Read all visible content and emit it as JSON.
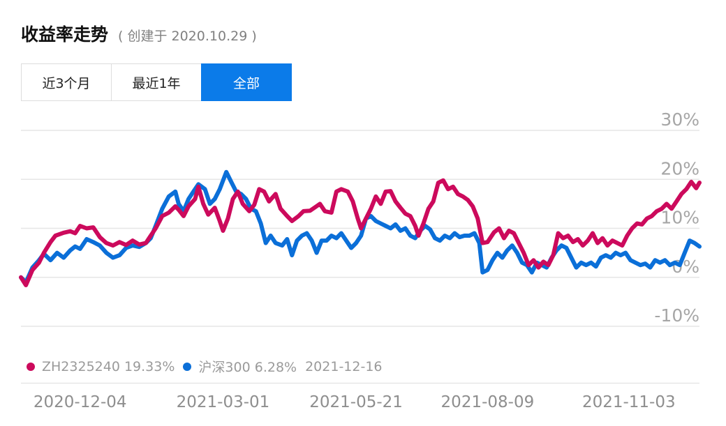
{
  "header": {
    "title": "收益率走势",
    "subtitle": "( 创建于 2020.10.29 )"
  },
  "tabs": [
    {
      "label": "近3个月",
      "active": false
    },
    {
      "label": "最近1年",
      "active": false
    },
    {
      "label": "全部",
      "active": true
    }
  ],
  "legend": {
    "items": [
      {
        "label": "ZH2325240 19.33%",
        "color": "#cc0a5c"
      },
      {
        "label": "沪深300 6.28%",
        "color": "#0b6fd8"
      }
    ],
    "date": "2021-12-16"
  },
  "chart_data": {
    "type": "line",
    "x_range": [
      "2020-10-29",
      "2021-12-16"
    ],
    "x_tick_labels": [
      "2020-12-04",
      "2021-03-01",
      "2021-05-21",
      "2021-08-09",
      "2021-11-03"
    ],
    "y_tick_labels": [
      "30%",
      "20%",
      "10%",
      "0%",
      "-10%"
    ],
    "y_ticks": [
      30,
      20,
      10,
      0,
      -10
    ],
    "ylim": [
      -10,
      30
    ],
    "grid": true,
    "series": [
      {
        "name": "ZH2325240",
        "color": "#cc0a5c",
        "points": [
          [
            "2020-10-29",
            0
          ],
          [
            "2020-11-01",
            -1.6
          ],
          [
            "2020-11-05",
            1.5
          ],
          [
            "2020-11-09",
            3.0
          ],
          [
            "2020-11-12",
            5.0
          ],
          [
            "2020-11-16",
            7.2
          ],
          [
            "2020-11-19",
            8.5
          ],
          [
            "2020-11-24",
            9.1
          ],
          [
            "2020-11-28",
            9.4
          ],
          [
            "2020-12-01",
            9.0
          ],
          [
            "2020-12-04",
            10.5
          ],
          [
            "2020-12-08",
            10.0
          ],
          [
            "2020-12-12",
            10.2
          ],
          [
            "2020-12-16",
            8.2
          ],
          [
            "2020-12-20",
            7.0
          ],
          [
            "2020-12-24",
            6.5
          ],
          [
            "2020-12-28",
            7.2
          ],
          [
            "2021-01-01",
            6.6
          ],
          [
            "2021-01-05",
            7.5
          ],
          [
            "2021-01-09",
            6.7
          ],
          [
            "2021-01-13",
            7.0
          ],
          [
            "2021-01-16",
            8.5
          ],
          [
            "2021-01-19",
            10.0
          ],
          [
            "2021-01-23",
            12.5
          ],
          [
            "2021-01-27",
            13.2
          ],
          [
            "2021-01-31",
            14.5
          ],
          [
            "2021-02-02",
            13.8
          ],
          [
            "2021-02-05",
            12.5
          ],
          [
            "2021-02-08",
            14.5
          ],
          [
            "2021-02-12",
            16.0
          ],
          [
            "2021-02-14",
            18.5
          ],
          [
            "2021-02-17",
            15.0
          ],
          [
            "2021-02-20",
            12.8
          ],
          [
            "2021-02-24",
            14.2
          ],
          [
            "2021-02-27",
            11.5
          ],
          [
            "2021-03-01",
            9.5
          ],
          [
            "2021-03-04",
            12.0
          ],
          [
            "2021-03-07",
            16.0
          ],
          [
            "2021-03-10",
            17.5
          ],
          [
            "2021-03-13",
            15.0
          ],
          [
            "2021-03-17",
            13.5
          ],
          [
            "2021-03-20",
            14.8
          ],
          [
            "2021-03-23",
            18.0
          ],
          [
            "2021-03-26",
            17.5
          ],
          [
            "2021-03-29",
            15.5
          ],
          [
            "2021-04-02",
            17.0
          ],
          [
            "2021-04-05",
            14.0
          ],
          [
            "2021-04-09",
            12.5
          ],
          [
            "2021-04-12",
            11.5
          ],
          [
            "2021-04-16",
            12.5
          ],
          [
            "2021-04-19",
            13.5
          ],
          [
            "2021-04-23",
            13.6
          ],
          [
            "2021-04-26",
            14.3
          ],
          [
            "2021-04-29",
            15.0
          ],
          [
            "2021-05-02",
            13.5
          ],
          [
            "2021-05-06",
            13.2
          ],
          [
            "2021-05-09",
            17.5
          ],
          [
            "2021-05-12",
            18.0
          ],
          [
            "2021-05-16",
            17.5
          ],
          [
            "2021-05-19",
            15.5
          ],
          [
            "2021-05-22",
            12.0
          ],
          [
            "2021-05-24",
            10.0
          ],
          [
            "2021-05-27",
            12.0
          ],
          [
            "2021-05-30",
            14.0
          ],
          [
            "2021-06-02",
            16.5
          ],
          [
            "2021-06-05",
            15.0
          ],
          [
            "2021-06-08",
            17.5
          ],
          [
            "2021-06-11",
            17.6
          ],
          [
            "2021-06-14",
            15.5
          ],
          [
            "2021-06-17",
            14.2
          ],
          [
            "2021-06-20",
            13.0
          ],
          [
            "2021-06-23",
            12.5
          ],
          [
            "2021-06-26",
            10.5
          ],
          [
            "2021-06-28",
            8.5
          ],
          [
            "2021-07-01",
            11.0
          ],
          [
            "2021-07-04",
            14.0
          ],
          [
            "2021-07-07",
            15.5
          ],
          [
            "2021-07-10",
            19.3
          ],
          [
            "2021-07-13",
            19.8
          ],
          [
            "2021-07-16",
            18.0
          ],
          [
            "2021-07-19",
            18.5
          ],
          [
            "2021-07-22",
            17.0
          ],
          [
            "2021-07-25",
            16.5
          ],
          [
            "2021-07-28",
            15.8
          ],
          [
            "2021-07-31",
            14.5
          ],
          [
            "2021-08-03",
            12.0
          ],
          [
            "2021-08-06",
            7.0
          ],
          [
            "2021-08-09",
            7.2
          ],
          [
            "2021-08-13",
            9.2
          ],
          [
            "2021-08-16",
            10.0
          ],
          [
            "2021-08-19",
            8.0
          ],
          [
            "2021-08-22",
            9.5
          ],
          [
            "2021-08-25",
            9.0
          ],
          [
            "2021-08-28",
            7.0
          ],
          [
            "2021-08-31",
            5.0
          ],
          [
            "2021-09-03",
            2.5
          ],
          [
            "2021-09-06",
            3.5
          ],
          [
            "2021-09-09",
            2.0
          ],
          [
            "2021-09-12",
            3.2
          ],
          [
            "2021-09-15",
            2.5
          ],
          [
            "2021-09-18",
            4.5
          ],
          [
            "2021-09-21",
            9.0
          ],
          [
            "2021-09-24",
            8.0
          ],
          [
            "2021-09-27",
            8.5
          ],
          [
            "2021-09-30",
            7.2
          ],
          [
            "2021-10-03",
            7.8
          ],
          [
            "2021-10-06",
            6.5
          ],
          [
            "2021-10-09",
            7.5
          ],
          [
            "2021-10-12",
            9.0
          ],
          [
            "2021-10-15",
            7.0
          ],
          [
            "2021-10-18",
            8.0
          ],
          [
            "2021-10-21",
            6.5
          ],
          [
            "2021-10-24",
            7.5
          ],
          [
            "2021-10-27",
            7.0
          ],
          [
            "2021-10-30",
            6.5
          ],
          [
            "2021-11-02",
            8.5
          ],
          [
            "2021-11-05",
            10.0
          ],
          [
            "2021-11-08",
            11.0
          ],
          [
            "2021-11-11",
            10.8
          ],
          [
            "2021-11-14",
            12.0
          ],
          [
            "2021-11-17",
            12.5
          ],
          [
            "2021-11-20",
            13.5
          ],
          [
            "2021-11-23",
            14.0
          ],
          [
            "2021-11-26",
            15.0
          ],
          [
            "2021-11-29",
            14.0
          ],
          [
            "2021-12-02",
            15.5
          ],
          [
            "2021-12-05",
            17.0
          ],
          [
            "2021-12-08",
            18.0
          ],
          [
            "2021-12-11",
            19.5
          ],
          [
            "2021-12-14",
            18.2
          ],
          [
            "2021-12-16",
            19.33
          ]
        ]
      },
      {
        "name": "沪深300",
        "color": "#0b6fd8",
        "points": [
          [
            "2020-10-29",
            0
          ],
          [
            "2020-11-01",
            -1.0
          ],
          [
            "2020-11-05",
            2.0
          ],
          [
            "2020-11-09",
            3.5
          ],
          [
            "2020-11-12",
            4.8
          ],
          [
            "2020-11-16",
            3.5
          ],
          [
            "2020-11-20",
            5.0
          ],
          [
            "2020-11-24",
            4.0
          ],
          [
            "2020-11-28",
            5.5
          ],
          [
            "2020-12-01",
            6.3
          ],
          [
            "2020-12-04",
            5.8
          ],
          [
            "2020-12-08",
            7.8
          ],
          [
            "2020-12-12",
            7.2
          ],
          [
            "2020-12-16",
            6.5
          ],
          [
            "2020-12-20",
            5.0
          ],
          [
            "2020-12-24",
            4.0
          ],
          [
            "2020-12-28",
            4.5
          ],
          [
            "2021-01-01",
            6.0
          ],
          [
            "2021-01-05",
            6.5
          ],
          [
            "2021-01-09",
            6.2
          ],
          [
            "2021-01-13",
            7.0
          ],
          [
            "2021-01-16",
            8.0
          ],
          [
            "2021-01-19",
            10.5
          ],
          [
            "2021-01-23",
            14.0
          ],
          [
            "2021-01-27",
            16.5
          ],
          [
            "2021-01-31",
            17.5
          ],
          [
            "2021-02-02",
            15.0
          ],
          [
            "2021-02-05",
            13.5
          ],
          [
            "2021-02-08",
            16.0
          ],
          [
            "2021-02-11",
            17.5
          ],
          [
            "2021-02-14",
            19.0
          ],
          [
            "2021-02-18",
            18.0
          ],
          [
            "2021-02-21",
            15.0
          ],
          [
            "2021-02-24",
            16.0
          ],
          [
            "2021-02-27",
            18.0
          ],
          [
            "2021-03-03",
            21.5
          ],
          [
            "2021-03-06",
            19.5
          ],
          [
            "2021-03-09",
            17.5
          ],
          [
            "2021-03-12",
            17.0
          ],
          [
            "2021-03-15",
            16.0
          ],
          [
            "2021-03-18",
            14.0
          ],
          [
            "2021-03-21",
            13.5
          ],
          [
            "2021-03-24",
            11.0
          ],
          [
            "2021-03-27",
            7.0
          ],
          [
            "2021-03-30",
            8.5
          ],
          [
            "2021-04-02",
            7.0
          ],
          [
            "2021-04-06",
            6.5
          ],
          [
            "2021-04-09",
            7.8
          ],
          [
            "2021-04-12",
            4.5
          ],
          [
            "2021-04-15",
            7.5
          ],
          [
            "2021-04-18",
            8.5
          ],
          [
            "2021-04-21",
            9.0
          ],
          [
            "2021-04-24",
            7.5
          ],
          [
            "2021-04-27",
            5.0
          ],
          [
            "2021-04-30",
            7.5
          ],
          [
            "2021-05-03",
            7.5
          ],
          [
            "2021-05-06",
            8.5
          ],
          [
            "2021-05-09",
            8.0
          ],
          [
            "2021-05-12",
            9.0
          ],
          [
            "2021-05-15",
            7.5
          ],
          [
            "2021-05-18",
            6.0
          ],
          [
            "2021-05-21",
            7.0
          ],
          [
            "2021-05-24",
            8.5
          ],
          [
            "2021-05-27",
            12.0
          ],
          [
            "2021-05-30",
            12.5
          ],
          [
            "2021-06-02",
            11.5
          ],
          [
            "2021-06-05",
            11.0
          ],
          [
            "2021-06-08",
            10.5
          ],
          [
            "2021-06-11",
            10.0
          ],
          [
            "2021-06-14",
            10.8
          ],
          [
            "2021-06-17",
            9.5
          ],
          [
            "2021-06-20",
            10.0
          ],
          [
            "2021-06-23",
            8.5
          ],
          [
            "2021-06-26",
            8.0
          ],
          [
            "2021-06-29",
            9.5
          ],
          [
            "2021-07-02",
            10.5
          ],
          [
            "2021-07-05",
            9.8
          ],
          [
            "2021-07-08",
            8.0
          ],
          [
            "2021-07-11",
            7.5
          ],
          [
            "2021-07-14",
            8.5
          ],
          [
            "2021-07-17",
            8.0
          ],
          [
            "2021-07-20",
            9.0
          ],
          [
            "2021-07-23",
            8.2
          ],
          [
            "2021-07-26",
            8.5
          ],
          [
            "2021-07-29",
            8.5
          ],
          [
            "2021-08-01",
            9.0
          ],
          [
            "2021-08-04",
            7.0
          ],
          [
            "2021-08-06",
            1.0
          ],
          [
            "2021-08-09",
            1.5
          ],
          [
            "2021-08-12",
            3.5
          ],
          [
            "2021-08-15",
            5.0
          ],
          [
            "2021-08-18",
            4.0
          ],
          [
            "2021-08-21",
            5.5
          ],
          [
            "2021-08-24",
            6.5
          ],
          [
            "2021-08-27",
            5.0
          ],
          [
            "2021-08-30",
            3.0
          ],
          [
            "2021-09-02",
            2.5
          ],
          [
            "2021-09-05",
            1.0
          ],
          [
            "2021-09-08",
            3.0
          ],
          [
            "2021-09-11",
            2.5
          ],
          [
            "2021-09-14",
            2.0
          ],
          [
            "2021-09-17",
            4.0
          ],
          [
            "2021-09-20",
            5.5
          ],
          [
            "2021-09-23",
            6.5
          ],
          [
            "2021-09-26",
            6.0
          ],
          [
            "2021-09-29",
            4.0
          ],
          [
            "2021-10-02",
            2.0
          ],
          [
            "2021-10-05",
            3.0
          ],
          [
            "2021-10-08",
            2.5
          ],
          [
            "2021-10-11",
            3.0
          ],
          [
            "2021-10-14",
            2.2
          ],
          [
            "2021-10-17",
            4.0
          ],
          [
            "2021-10-20",
            4.5
          ],
          [
            "2021-10-23",
            4.0
          ],
          [
            "2021-10-26",
            5.0
          ],
          [
            "2021-10-29",
            4.5
          ],
          [
            "2021-11-01",
            5.0
          ],
          [
            "2021-11-04",
            3.5
          ],
          [
            "2021-11-07",
            3.0
          ],
          [
            "2021-11-10",
            2.5
          ],
          [
            "2021-11-13",
            2.8
          ],
          [
            "2021-11-16",
            2.0
          ],
          [
            "2021-11-19",
            3.5
          ],
          [
            "2021-11-22",
            3.0
          ],
          [
            "2021-11-25",
            3.5
          ],
          [
            "2021-11-28",
            2.5
          ],
          [
            "2021-12-01",
            3.0
          ],
          [
            "2021-12-04",
            2.5
          ],
          [
            "2021-12-07",
            5.0
          ],
          [
            "2021-12-10",
            7.5
          ],
          [
            "2021-12-13",
            7.0
          ],
          [
            "2021-12-16",
            6.28
          ]
        ]
      }
    ]
  }
}
